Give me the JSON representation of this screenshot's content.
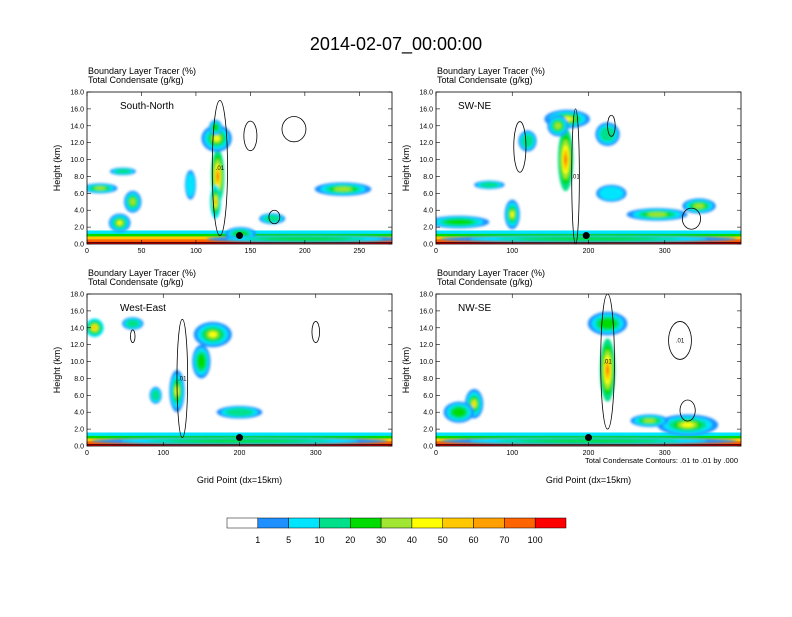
{
  "title": "2014-02-07_00:00:00",
  "panel_header_1": "Boundary Layer Tracer   (%)",
  "panel_header_2": "Total Condensate   (g/kg)",
  "x_axis_label": "Grid Point (dx=15km)",
  "y_axis_label": "Height (km)",
  "contour_note": "Total Condensate Contours: .01 to .01 by .000",
  "colorbar": {
    "levels": [
      "1",
      "5",
      "10",
      "20",
      "30",
      "40",
      "50",
      "60",
      "70",
      "100"
    ],
    "colors": [
      "#ffffff",
      "#1e90ff",
      "#00e5ff",
      "#00e08a",
      "#00dc00",
      "#a0e632",
      "#ffff00",
      "#ffc800",
      "#ffa000",
      "#ff6400",
      "#ff0000"
    ]
  },
  "chart_data": [
    {
      "type": "heatmap",
      "panel_label": "South-North",
      "title": "Boundary Layer Tracer (%) / Total Condensate (g/kg)",
      "xlim": [
        0,
        280
      ],
      "ylim": [
        0,
        18
      ],
      "xticks": [
        "0",
        "50",
        "100",
        "150",
        "200",
        "250"
      ],
      "xtick_values": [
        0,
        50,
        100,
        150,
        200,
        250
      ],
      "yticks": [
        "0.0",
        "2.0",
        "4.0",
        "6.0",
        "8.0",
        "10.0",
        "12.0",
        "14.0",
        "16.0",
        "18.0"
      ],
      "xlabel": "",
      "ylabel": "Height (km)",
      "marker": {
        "x": 140,
        "z": 1.0
      },
      "blobs": [
        {
          "x": 120,
          "z": 8.0,
          "w": 6,
          "h": 6.5,
          "v": 70
        },
        {
          "x": 119,
          "z": 12.5,
          "w": 14,
          "h": 3.2,
          "v": 40
        },
        {
          "x": 118,
          "z": 5.0,
          "w": 5,
          "h": 4.0,
          "v": 60
        },
        {
          "x": 118,
          "z": 13.8,
          "w": 6,
          "h": 1.8,
          "v": 20
        },
        {
          "x": 12,
          "z": 6.6,
          "w": 16,
          "h": 1.2,
          "v": 30
        },
        {
          "x": 42,
          "z": 5.0,
          "w": 8,
          "h": 2.6,
          "v": 30
        },
        {
          "x": 30,
          "z": 2.5,
          "w": 10,
          "h": 2.2,
          "v": 40
        },
        {
          "x": 33,
          "z": 8.6,
          "w": 12,
          "h": 0.9,
          "v": 10
        },
        {
          "x": 141,
          "z": 1.2,
          "w": 14,
          "h": 1.6,
          "v": 20
        },
        {
          "x": 170,
          "z": 3.0,
          "w": 12,
          "h": 1.3,
          "v": 10
        },
        {
          "x": 235,
          "z": 6.5,
          "w": 26,
          "h": 1.6,
          "v": 30
        },
        {
          "x": 95,
          "z": 7.0,
          "w": 5,
          "h": 3.5,
          "v": 5
        },
        {
          "x": 200,
          "z": 0.6,
          "w": 90,
          "h": 0.9,
          "v": 20
        }
      ],
      "contours": [
        {
          "x": 122,
          "z": 9.0,
          "w": 14,
          "h": 16,
          "label": ".01"
        },
        {
          "x": 150,
          "z": 12.8,
          "w": 12,
          "h": 3.5,
          "label": ""
        },
        {
          "x": 190,
          "z": 13.6,
          "w": 22,
          "h": 3.0,
          "label": ""
        },
        {
          "x": 172,
          "z": 3.2,
          "w": 10,
          "h": 1.6,
          "label": ""
        }
      ]
    },
    {
      "type": "heatmap",
      "panel_label": "SW-NE",
      "title": "Boundary Layer Tracer (%) / Total Condensate (g/kg)",
      "xlim": [
        0,
        400
      ],
      "ylim": [
        0,
        18
      ],
      "xticks": [
        "0",
        "100",
        "200",
        "300"
      ],
      "xtick_values": [
        0,
        100,
        200,
        300
      ],
      "yticks": [
        "0.0",
        "2.0",
        "4.0",
        "6.0",
        "8.0",
        "10.0",
        "12.0",
        "14.0",
        "16.0",
        "18.0"
      ],
      "xlabel": "",
      "ylabel": "Height (km)",
      "marker": {
        "x": 197,
        "z": 1.0
      },
      "blobs": [
        {
          "x": 170,
          "z": 10.0,
          "w": 10,
          "h": 7.5,
          "v": 70
        },
        {
          "x": 172,
          "z": 14.8,
          "w": 30,
          "h": 2.2,
          "v": 40
        },
        {
          "x": 160,
          "z": 14.0,
          "w": 14,
          "h": 2.5,
          "v": 30
        },
        {
          "x": 100,
          "z": 3.5,
          "w": 10,
          "h": 3.5,
          "v": 40
        },
        {
          "x": 30,
          "z": 2.6,
          "w": 40,
          "h": 1.5,
          "v": 20
        },
        {
          "x": 120,
          "z": 12.2,
          "w": 12,
          "h": 2.5,
          "v": 10
        },
        {
          "x": 225,
          "z": 13.0,
          "w": 16,
          "h": 2.8,
          "v": 10
        },
        {
          "x": 290,
          "z": 3.5,
          "w": 40,
          "h": 1.5,
          "v": 30
        },
        {
          "x": 345,
          "z": 4.5,
          "w": 22,
          "h": 1.8,
          "v": 30
        },
        {
          "x": 70,
          "z": 7.0,
          "w": 20,
          "h": 1.0,
          "v": 10
        },
        {
          "x": 200,
          "z": 0.6,
          "w": 195,
          "h": 0.9,
          "v": 20
        },
        {
          "x": 230,
          "z": 6.0,
          "w": 20,
          "h": 2.0,
          "v": 5
        }
      ],
      "contours": [
        {
          "x": 183,
          "z": 8.0,
          "w": 10,
          "h": 16,
          "label": ".01"
        },
        {
          "x": 110,
          "z": 11.5,
          "w": 16,
          "h": 6,
          "label": ""
        },
        {
          "x": 230,
          "z": 14.0,
          "w": 10,
          "h": 2.5,
          "label": ""
        },
        {
          "x": 335,
          "z": 3.0,
          "w": 24,
          "h": 2.5,
          "label": ""
        }
      ]
    },
    {
      "type": "heatmap",
      "panel_label": "West-East",
      "title": "Boundary Layer Tracer (%) / Total Condensate (g/kg)",
      "xlim": [
        0,
        400
      ],
      "ylim": [
        0,
        18
      ],
      "xticks": [
        "0",
        "100",
        "200",
        "300"
      ],
      "xtick_values": [
        0,
        100,
        200,
        300
      ],
      "yticks": [
        "0.0",
        "2.0",
        "4.0",
        "6.0",
        "8.0",
        "10.0",
        "12.0",
        "14.0",
        "16.0",
        "18.0"
      ],
      "xlabel": "Grid Point (dx=15km)",
      "ylabel": "Height (km)",
      "marker": {
        "x": 200,
        "z": 1.0
      },
      "blobs": [
        {
          "x": 118,
          "z": 6.5,
          "w": 10,
          "h": 5.0,
          "v": 40
        },
        {
          "x": 165,
          "z": 13.2,
          "w": 25,
          "h": 3.0,
          "v": 40
        },
        {
          "x": 150,
          "z": 10.0,
          "w": 12,
          "h": 4.0,
          "v": 20
        },
        {
          "x": 10,
          "z": 14.0,
          "w": 12,
          "h": 2.2,
          "v": 60
        },
        {
          "x": 60,
          "z": 14.5,
          "w": 14,
          "h": 1.5,
          "v": 10
        },
        {
          "x": 200,
          "z": 4.0,
          "w": 30,
          "h": 1.5,
          "v": 10
        },
        {
          "x": 90,
          "z": 6.0,
          "w": 8,
          "h": 2.0,
          "v": 10
        },
        {
          "x": 200,
          "z": 0.6,
          "w": 195,
          "h": 0.9,
          "v": 20
        }
      ],
      "contours": [
        {
          "x": 125,
          "z": 8.0,
          "w": 14,
          "h": 14,
          "label": ".01"
        },
        {
          "x": 300,
          "z": 13.5,
          "w": 10,
          "h": 2.5,
          "label": ""
        },
        {
          "x": 60,
          "z": 13.0,
          "w": 6,
          "h": 1.5,
          "label": ""
        }
      ]
    },
    {
      "type": "heatmap",
      "panel_label": "NW-SE",
      "title": "Boundary Layer Tracer (%) / Total Condensate (g/kg)",
      "xlim": [
        0,
        400
      ],
      "ylim": [
        0,
        18
      ],
      "xticks": [
        "0",
        "100",
        "200",
        "300"
      ],
      "xtick_values": [
        0,
        100,
        200,
        300
      ],
      "yticks": [
        "0.0",
        "2.0",
        "4.0",
        "6.0",
        "8.0",
        "10.0",
        "12.0",
        "14.0",
        "16.0",
        "18.0"
      ],
      "xlabel": "Grid Point (dx=15km)",
      "ylabel": "Height (km)",
      "marker": {
        "x": 200,
        "z": 1.0
      },
      "blobs": [
        {
          "x": 225,
          "z": 9.0,
          "w": 10,
          "h": 7.5,
          "v": 70
        },
        {
          "x": 225,
          "z": 14.5,
          "w": 26,
          "h": 2.8,
          "v": 20
        },
        {
          "x": 50,
          "z": 5.0,
          "w": 12,
          "h": 3.5,
          "v": 50
        },
        {
          "x": 30,
          "z": 4.0,
          "w": 20,
          "h": 2.5,
          "v": 20
        },
        {
          "x": 330,
          "z": 2.5,
          "w": 40,
          "h": 2.5,
          "v": 40
        },
        {
          "x": 280,
          "z": 3.0,
          "w": 25,
          "h": 1.5,
          "v": 30
        },
        {
          "x": 200,
          "z": 0.6,
          "w": 195,
          "h": 0.9,
          "v": 20
        }
      ],
      "contours": [
        {
          "x": 225,
          "z": 10.0,
          "w": 18,
          "h": 16,
          "label": ".01"
        },
        {
          "x": 320,
          "z": 12.5,
          "w": 30,
          "h": 4.5,
          "label": ".01"
        },
        {
          "x": 330,
          "z": 4.2,
          "w": 20,
          "h": 2.5,
          "label": ""
        }
      ]
    }
  ]
}
